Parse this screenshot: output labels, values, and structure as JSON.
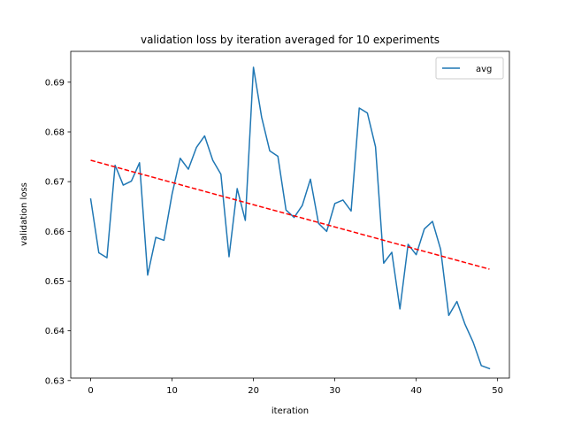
{
  "chart_data": {
    "type": "line",
    "title": "validation loss by iteration averaged for 10 experiments",
    "xlabel": "iteration",
    "ylabel": "validation loss",
    "xlim": [
      -2.45,
      51.45
    ],
    "ylim": [
      0.6305,
      0.6962
    ],
    "xticks": [
      0,
      10,
      20,
      30,
      40,
      50
    ],
    "yticks": [
      0.63,
      0.64,
      0.65,
      0.66,
      0.67,
      0.68,
      0.69
    ],
    "x": [
      0,
      1,
      2,
      3,
      4,
      5,
      6,
      7,
      8,
      9,
      10,
      11,
      12,
      13,
      14,
      15,
      16,
      17,
      18,
      19,
      20,
      21,
      22,
      23,
      24,
      25,
      26,
      27,
      28,
      29,
      30,
      31,
      32,
      33,
      34,
      35,
      36,
      37,
      38,
      39,
      40,
      41,
      42,
      43,
      44,
      45,
      46,
      47,
      48,
      49
    ],
    "series": [
      {
        "name": "avg",
        "color": "#1f77b4",
        "style": "solid",
        "values": [
          0.6665,
          0.6557,
          0.6547,
          0.6733,
          0.6693,
          0.6701,
          0.6738,
          0.6512,
          0.6588,
          0.6582,
          0.6675,
          0.6747,
          0.6725,
          0.6769,
          0.6792,
          0.6743,
          0.6715,
          0.6549,
          0.6686,
          0.6622,
          0.693,
          0.683,
          0.6762,
          0.6751,
          0.6643,
          0.6628,
          0.6652,
          0.6705,
          0.6616,
          0.66,
          0.6656,
          0.6663,
          0.6641,
          0.6848,
          0.6838,
          0.677,
          0.6536,
          0.6558,
          0.6444,
          0.6574,
          0.6553,
          0.6605,
          0.662,
          0.6564,
          0.6431,
          0.6459,
          0.6413,
          0.6377,
          0.633,
          0.6324
        ]
      },
      {
        "color": "#ff0000",
        "style": "dashed",
        "values": [
          0.6743,
          0.6524
        ],
        "x": [
          0,
          49
        ]
      }
    ],
    "legend": {
      "location": "top-right",
      "entries": [
        "avg"
      ]
    },
    "grid": false
  }
}
